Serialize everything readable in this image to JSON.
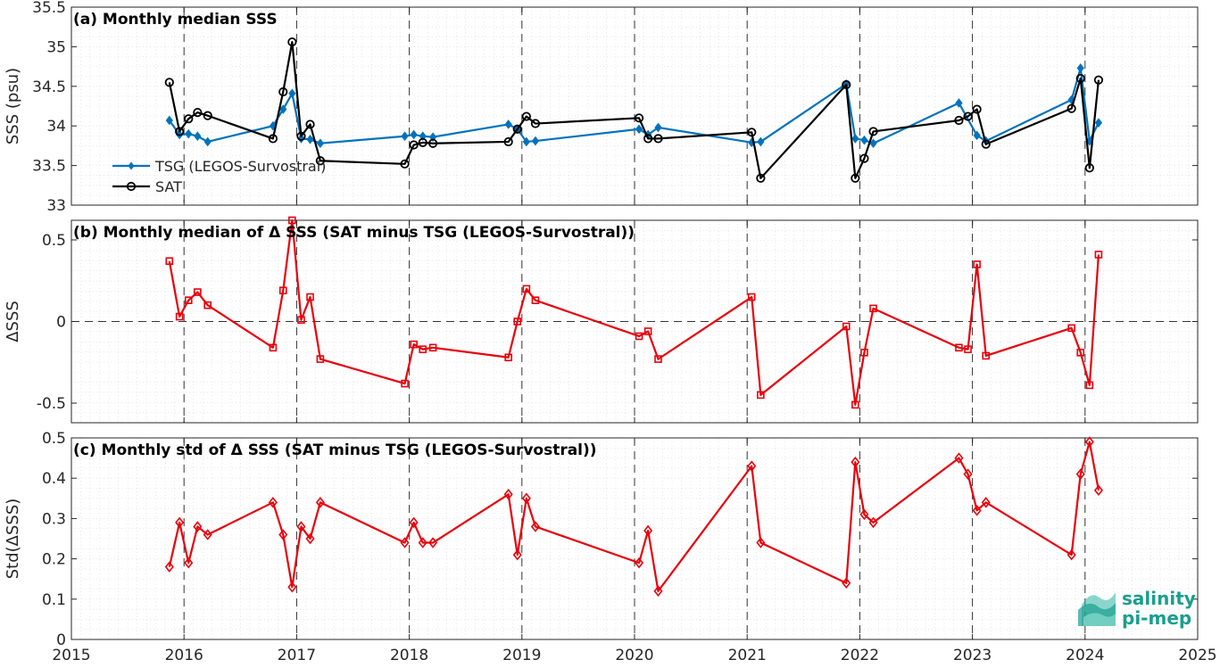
{
  "chart_data": [
    {
      "type": "line",
      "title": "(a) Monthly median SSS",
      "ylabel": "SSS (psu)",
      "xlabel": "",
      "xlim": [
        2015,
        2025
      ],
      "ylim": [
        33,
        35.5
      ],
      "yticks": [
        33,
        33.5,
        34,
        34.5,
        35,
        35.5
      ],
      "ytick_labels": [
        "33",
        "33.5",
        "34",
        "34.5",
        "35",
        "35.5"
      ],
      "grid": true,
      "legend": "left",
      "series": [
        {
          "name": "TSG (LEGOS-Survostral)",
          "color": "#0072BD",
          "marker": "diamond",
          "points": [
            [
              2015.87,
              34.07
            ],
            [
              2015.96,
              33.89
            ],
            [
              2016.04,
              33.9
            ],
            [
              2016.12,
              33.87
            ],
            [
              2016.21,
              33.8
            ],
            [
              2016.79,
              34.0
            ],
            [
              2016.88,
              34.21
            ],
            [
              2016.96,
              34.41
            ],
            [
              2017.04,
              33.84
            ],
            [
              2017.12,
              33.83
            ],
            [
              2017.21,
              33.78
            ],
            [
              2017.96,
              33.87
            ],
            [
              2018.04,
              33.89
            ],
            [
              2018.12,
              33.87
            ],
            [
              2018.21,
              33.86
            ],
            [
              2018.88,
              34.02
            ],
            [
              2018.96,
              33.96
            ],
            [
              2019.04,
              33.8
            ],
            [
              2019.12,
              33.81
            ],
            [
              2020.04,
              33.96
            ],
            [
              2020.12,
              33.89
            ],
            [
              2020.21,
              33.98
            ],
            [
              2021.04,
              33.79
            ],
            [
              2021.12,
              33.8
            ],
            [
              2021.88,
              34.53
            ],
            [
              2021.96,
              33.84
            ],
            [
              2022.04,
              33.82
            ],
            [
              2022.12,
              33.78
            ],
            [
              2022.88,
              34.29
            ],
            [
              2023.04,
              33.88
            ],
            [
              2023.12,
              33.81
            ],
            [
              2023.88,
              34.33
            ],
            [
              2023.96,
              34.73
            ],
            [
              2024.04,
              33.81
            ],
            [
              2024.12,
              34.04
            ]
          ]
        },
        {
          "name": "SAT",
          "color": "#000000",
          "marker": "circle",
          "points": [
            [
              2015.87,
              34.55
            ],
            [
              2015.96,
              33.93
            ],
            [
              2016.04,
              34.09
            ],
            [
              2016.12,
              34.17
            ],
            [
              2016.21,
              34.13
            ],
            [
              2016.79,
              33.84
            ],
            [
              2016.88,
              34.43
            ],
            [
              2016.96,
              35.06
            ],
            [
              2017.04,
              33.87
            ],
            [
              2017.12,
              34.02
            ],
            [
              2017.21,
              33.56
            ],
            [
              2017.96,
              33.52
            ],
            [
              2018.04,
              33.76
            ],
            [
              2018.12,
              33.79
            ],
            [
              2018.21,
              33.78
            ],
            [
              2018.88,
              33.8
            ],
            [
              2018.96,
              33.96
            ],
            [
              2019.04,
              34.12
            ],
            [
              2019.12,
              34.03
            ],
            [
              2020.04,
              34.1
            ],
            [
              2020.12,
              33.84
            ],
            [
              2020.21,
              33.84
            ],
            [
              2021.04,
              33.92
            ],
            [
              2021.12,
              33.34
            ],
            [
              2021.88,
              34.52
            ],
            [
              2021.96,
              33.34
            ],
            [
              2022.04,
              33.59
            ],
            [
              2022.12,
              33.93
            ],
            [
              2022.88,
              34.07
            ],
            [
              2022.96,
              34.12
            ],
            [
              2023.04,
              34.21
            ],
            [
              2023.12,
              33.77
            ],
            [
              2023.88,
              34.22
            ],
            [
              2023.96,
              34.6
            ],
            [
              2024.04,
              33.47
            ],
            [
              2024.12,
              34.58
            ]
          ]
        }
      ]
    },
    {
      "type": "line",
      "title": "(b) Monthly median of Δ SSS (SAT minus TSG (LEGOS-Survostral))",
      "ylabel": "ΔSSS",
      "xlabel": "",
      "xlim": [
        2015,
        2025
      ],
      "ylim": [
        -0.62,
        0.62
      ],
      "yticks": [
        -0.5,
        0,
        0.5
      ],
      "ytick_labels": [
        "-0.5",
        "0",
        "0.5"
      ],
      "grid": true,
      "series": [
        {
          "name": "",
          "color": "#E8000B",
          "marker": "square",
          "points": [
            [
              2015.87,
              0.37
            ],
            [
              2015.96,
              0.03
            ],
            [
              2016.04,
              0.13
            ],
            [
              2016.12,
              0.18
            ],
            [
              2016.21,
              0.1
            ],
            [
              2016.79,
              -0.16
            ],
            [
              2016.88,
              0.19
            ],
            [
              2016.96,
              0.62
            ],
            [
              2017.04,
              0.01
            ],
            [
              2017.12,
              0.15
            ],
            [
              2017.21,
              -0.23
            ],
            [
              2017.96,
              -0.38
            ],
            [
              2018.04,
              -0.14
            ],
            [
              2018.12,
              -0.17
            ],
            [
              2018.21,
              -0.16
            ],
            [
              2018.88,
              -0.22
            ],
            [
              2018.96,
              0.0
            ],
            [
              2019.04,
              0.2
            ],
            [
              2019.12,
              0.13
            ],
            [
              2020.04,
              -0.09
            ],
            [
              2020.12,
              -0.06
            ],
            [
              2020.21,
              -0.23
            ],
            [
              2021.04,
              0.15
            ],
            [
              2021.12,
              -0.45
            ],
            [
              2021.88,
              -0.03
            ],
            [
              2021.96,
              -0.51
            ],
            [
              2022.04,
              -0.19
            ],
            [
              2022.12,
              0.08
            ],
            [
              2022.88,
              -0.16
            ],
            [
              2022.96,
              -0.17
            ],
            [
              2023.04,
              0.35
            ],
            [
              2023.12,
              -0.21
            ],
            [
              2023.88,
              -0.04
            ],
            [
              2023.96,
              -0.19
            ],
            [
              2024.04,
              -0.39
            ],
            [
              2024.12,
              0.41
            ]
          ]
        }
      ]
    },
    {
      "type": "line",
      "title": "(c) Monthly std of Δ SSS (SAT minus TSG (LEGOS-Survostral))",
      "ylabel": "Std(ΔSSS)",
      "xlabel": "",
      "xlim": [
        2015,
        2025
      ],
      "ylim": [
        0,
        0.5
      ],
      "yticks": [
        0,
        0.1,
        0.2,
        0.3,
        0.4,
        0.5
      ],
      "ytick_labels": [
        "0",
        "0.1",
        "0.2",
        "0.3",
        "0.4",
        "0.5"
      ],
      "xticks": [
        2015,
        2016,
        2017,
        2018,
        2019,
        2020,
        2021,
        2022,
        2023,
        2024,
        2025
      ],
      "xtick_labels": [
        "2015",
        "2016",
        "2017",
        "2018",
        "2019",
        "2020",
        "2021",
        "2022",
        "2023",
        "2024",
        "2025"
      ],
      "grid": true,
      "series": [
        {
          "name": "",
          "color": "#E8000B",
          "marker": "diamond-open",
          "points": [
            [
              2015.87,
              0.18
            ],
            [
              2015.96,
              0.29
            ],
            [
              2016.04,
              0.19
            ],
            [
              2016.12,
              0.28
            ],
            [
              2016.21,
              0.26
            ],
            [
              2016.79,
              0.34
            ],
            [
              2016.88,
              0.26
            ],
            [
              2016.96,
              0.13
            ],
            [
              2017.04,
              0.28
            ],
            [
              2017.12,
              0.25
            ],
            [
              2017.21,
              0.34
            ],
            [
              2017.96,
              0.24
            ],
            [
              2018.04,
              0.29
            ],
            [
              2018.12,
              0.24
            ],
            [
              2018.21,
              0.24
            ],
            [
              2018.88,
              0.36
            ],
            [
              2018.96,
              0.21
            ],
            [
              2019.04,
              0.35
            ],
            [
              2019.12,
              0.28
            ],
            [
              2020.04,
              0.19
            ],
            [
              2020.12,
              0.27
            ],
            [
              2020.21,
              0.12
            ],
            [
              2021.04,
              0.43
            ],
            [
              2021.12,
              0.24
            ],
            [
              2021.88,
              0.14
            ],
            [
              2021.96,
              0.44
            ],
            [
              2022.04,
              0.31
            ],
            [
              2022.12,
              0.29
            ],
            [
              2022.88,
              0.45
            ],
            [
              2022.96,
              0.41
            ],
            [
              2023.04,
              0.32
            ],
            [
              2023.12,
              0.34
            ],
            [
              2023.88,
              0.21
            ],
            [
              2023.96,
              0.41
            ],
            [
              2024.04,
              0.49
            ],
            [
              2024.12,
              0.37
            ]
          ]
        }
      ]
    }
  ],
  "year_markers": [
    2016,
    2017,
    2018,
    2019,
    2020,
    2021,
    2022,
    2023,
    2024
  ],
  "logo": {
    "line1": "salinity",
    "line2": "pi-mep",
    "color": "#1a9e8f"
  }
}
